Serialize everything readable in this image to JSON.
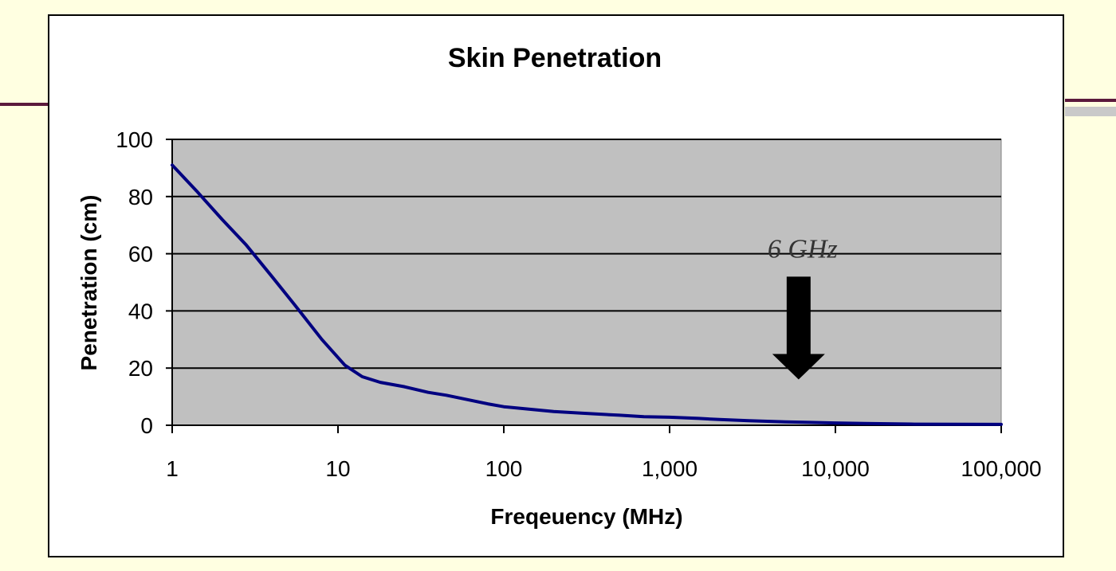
{
  "chart_data": {
    "type": "line",
    "title": "Skin Penetration",
    "xlabel": "Freqeuency (MHz)",
    "ylabel": "Penetration (cm)",
    "x_scale": "log",
    "xlim": [
      1,
      100000
    ],
    "ylim": [
      0,
      100
    ],
    "x_ticks": [
      1,
      10,
      100,
      1000,
      10000,
      100000
    ],
    "x_tick_labels": [
      "1",
      "10",
      "100",
      "1,000",
      "10,000",
      "100,000"
    ],
    "y_ticks": [
      0,
      20,
      40,
      60,
      80,
      100
    ],
    "y_tick_labels": [
      "0",
      "20",
      "40",
      "60",
      "80",
      "100"
    ],
    "grid": "horizontal",
    "plot_background": "#c0c0c0",
    "series": [
      {
        "color": "#000080",
        "x": [
          1,
          1.4,
          2,
          2.8,
          4,
          5.5,
          8,
          11,
          14,
          18,
          25,
          35,
          45,
          60,
          80,
          100,
          150,
          200,
          300,
          500,
          700,
          1000,
          1500,
          2000,
          3000,
          5000,
          7000,
          10000,
          15000,
          30000,
          100000
        ],
        "y": [
          91,
          82,
          72,
          63,
          52,
          42,
          30,
          21,
          17,
          15,
          13.5,
          11.5,
          10.5,
          9,
          7.5,
          6.5,
          5.5,
          4.8,
          4.2,
          3.5,
          3,
          2.8,
          2.4,
          2,
          1.6,
          1.2,
          1,
          0.8,
          0.6,
          0.4,
          0.3
        ]
      }
    ],
    "annotations": [
      {
        "text": "6 GHz",
        "x": 6000,
        "arrow_from_y": 52,
        "arrow_to_y": 16
      }
    ]
  }
}
